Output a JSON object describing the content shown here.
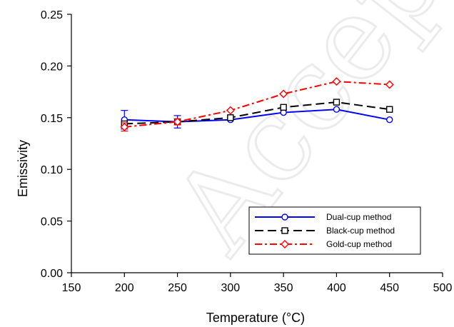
{
  "watermark": "Accepted",
  "chart_data": {
    "type": "line",
    "title": "",
    "xlabel": "Temperature (°C)",
    "ylabel": "Emissivity",
    "xlim": [
      150,
      500
    ],
    "ylim": [
      0.0,
      0.25
    ],
    "xticks": [
      150,
      200,
      250,
      300,
      350,
      400,
      450,
      500
    ],
    "yticks": [
      0.0,
      0.05,
      0.1,
      0.15,
      0.2,
      0.25
    ],
    "xtick_labels": [
      "150",
      "200",
      "250",
      "300",
      "350",
      "400",
      "450",
      "500"
    ],
    "ytick_labels": [
      "0.00",
      "0.05",
      "0.10",
      "0.15",
      "0.20",
      "0.25"
    ],
    "grid": false,
    "legend_position": "bottom-right",
    "x": [
      200,
      250,
      300,
      350,
      400,
      450
    ],
    "series": [
      {
        "name": "Dual-cup method",
        "values": [
          0.148,
          0.146,
          0.148,
          0.155,
          0.158,
          0.148
        ],
        "error": [
          0.009,
          0.006,
          0,
          0,
          0,
          0
        ],
        "color": "#0000ff",
        "line_style": "solid",
        "marker": "circle"
      },
      {
        "name": "Black-cup method",
        "values": [
          0.144,
          0.146,
          0.15,
          0.16,
          0.165,
          0.158
        ],
        "error": [
          0,
          0,
          0,
          0,
          0,
          0
        ],
        "color": "#000000",
        "line_style": "dashed",
        "marker": "square"
      },
      {
        "name": "Gold-cup method",
        "values": [
          0.141,
          0.146,
          0.157,
          0.173,
          0.185,
          0.182
        ],
        "error": [
          0.004,
          0.003,
          0,
          0,
          0,
          0
        ],
        "color": "#ff0000",
        "line_style": "dash-dot",
        "marker": "diamond"
      }
    ]
  }
}
